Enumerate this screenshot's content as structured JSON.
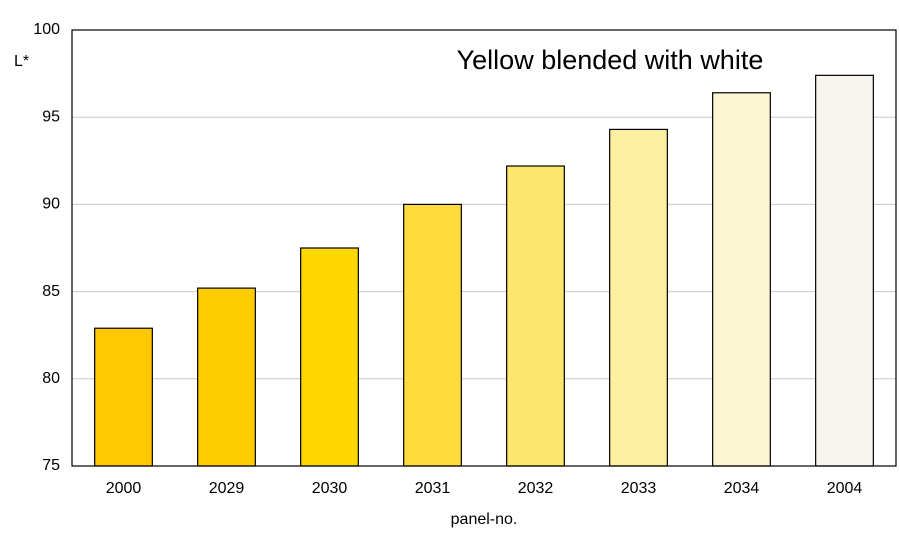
{
  "chart_data": {
    "type": "bar",
    "annotation": "Yellow blended with white",
    "y_label": "L*",
    "x_label": "panel-no.",
    "categories": [
      "2000",
      "2029",
      "2030",
      "2031",
      "2032",
      "2033",
      "2034",
      "2004"
    ],
    "values": [
      82.9,
      85.2,
      87.5,
      90.0,
      92.2,
      94.3,
      96.4,
      97.4
    ],
    "colors": [
      "#ffc800",
      "#ffcc00",
      "#ffd700",
      "#ffdc3c",
      "#fde66e",
      "#fdefa0",
      "#fbf5d2",
      "#f7f5ee"
    ],
    "ylim": [
      75,
      100
    ],
    "yticks": [
      75,
      80,
      85,
      90,
      95,
      100
    ],
    "grid": true
  }
}
